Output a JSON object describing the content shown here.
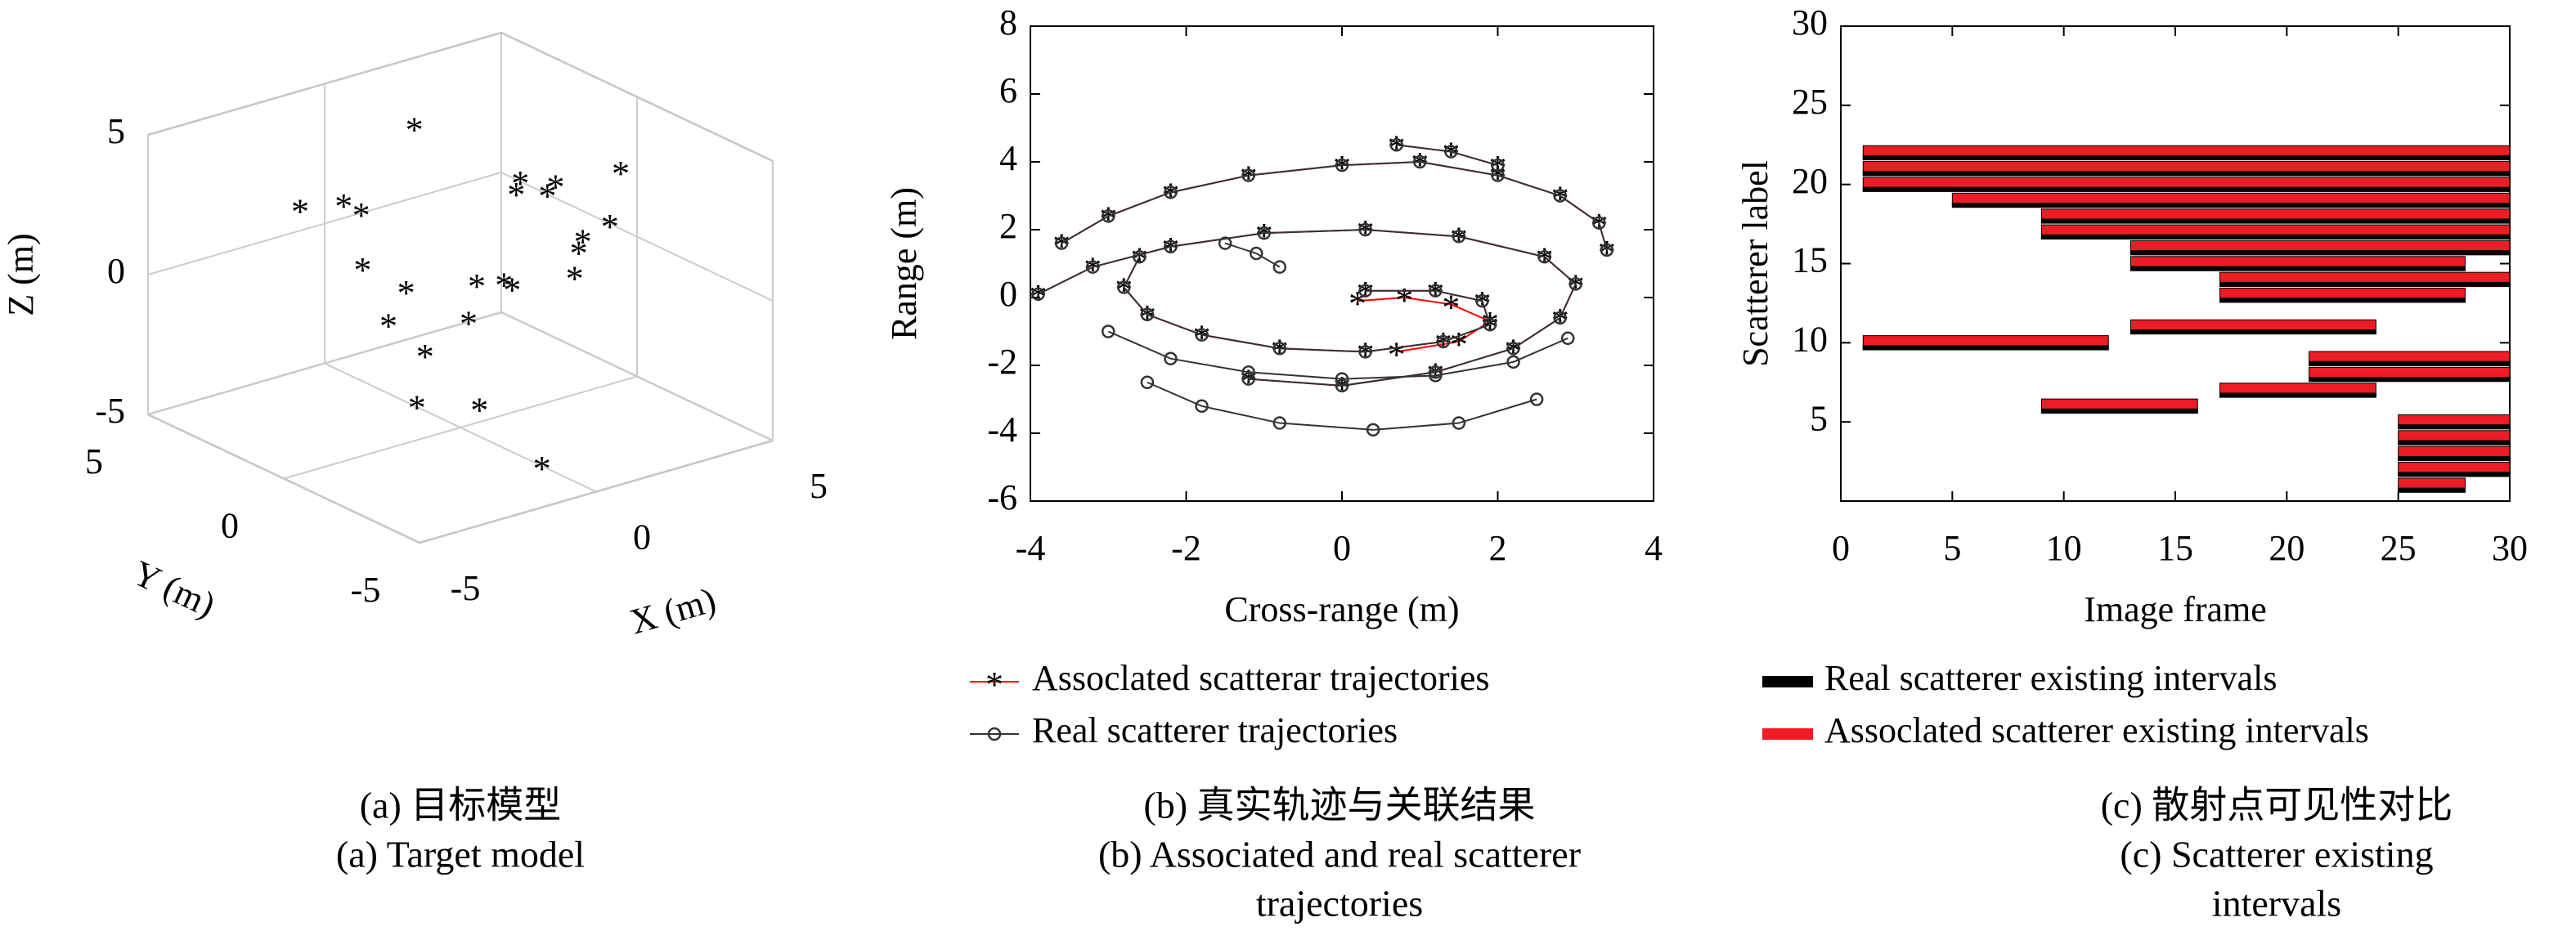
{
  "chart_data": [
    {
      "type": "scatter3d",
      "caption": [
        "(a) 目标模型",
        "(a) Target model"
      ],
      "xlabel": "X (m)",
      "ylabel": "Y (m)",
      "zlabel": "Z (m)",
      "xlim": [
        -5,
        5
      ],
      "ylim": [
        -5,
        5
      ],
      "zlim": [
        -5,
        5
      ],
      "xticks": [
        -5,
        0,
        5
      ],
      "yticks": [
        -5,
        0,
        5
      ],
      "zticks": [
        -5,
        0,
        5
      ],
      "grid": true,
      "color": "#000000",
      "x": [
        -3,
        -2,
        -1,
        -0.5,
        0,
        1,
        -1,
        2,
        3,
        4,
        4,
        5,
        5,
        5,
        4,
        3,
        1,
        -2,
        -1,
        0,
        -0.5,
        2,
        3.5,
        4.5
      ],
      "y": [
        2,
        1,
        3,
        3,
        2,
        1,
        0,
        1,
        2,
        3,
        2,
        3,
        2,
        1,
        1,
        -2,
        3,
        -1,
        -2,
        -3,
        2,
        2,
        2.5,
        1.5
      ],
      "z": [
        3,
        1,
        2,
        1.5,
        -1,
        -2,
        -2,
        -1,
        -2,
        1,
        1,
        0.5,
        -1,
        0,
        -1.5,
        4,
        4,
        -3,
        -3,
        -5,
        -2,
        -1.5,
        1,
        -1
      ]
    },
    {
      "type": "line",
      "caption": [
        "(b) 真实轨迹与关联结果",
        "(b) Associated and real scatterer",
        "trajectories"
      ],
      "xlabel": "Cross-range (m)",
      "ylabel": "Range (m)",
      "xlim": [
        -4,
        4
      ],
      "ylim": [
        -6,
        8
      ],
      "xticks": [
        -4,
        -2,
        0,
        2,
        4
      ],
      "yticks": [
        -6,
        -4,
        -2,
        0,
        2,
        4,
        6,
        8
      ],
      "legend": "bottom",
      "series": [
        {
          "name": "Assoclated scatterar trajectories",
          "color": "#ff0000",
          "marker": "star",
          "x": [
            -3.6,
            -3.0,
            -2.2,
            -1.2,
            0,
            1.0,
            2.0,
            2.8,
            3.3,
            3.4,
            null,
            -3.9,
            -3.2,
            -2.2,
            -1,
            0.3,
            1.5,
            2.6,
            3.0,
            2.8,
            2.2,
            1.2,
            0,
            -1.2,
            null,
            -2.6,
            -2.8,
            -2.5,
            -1.8,
            -0.8,
            0.3,
            1.3,
            1.9,
            1.8,
            1.2,
            0.3,
            null,
            0.7,
            1.4,
            2,
            null,
            0.2,
            0.8,
            1.4,
            1.9,
            1.5,
            0.7
          ],
          "y": [
            1.6,
            2.4,
            3.1,
            3.6,
            3.9,
            4.0,
            3.6,
            3.0,
            2.2,
            1.4,
            null,
            0.1,
            0.9,
            1.5,
            1.9,
            2.0,
            1.8,
            1.2,
            0.4,
            -0.6,
            -1.5,
            -2.2,
            -2.6,
            -2.4,
            null,
            1.2,
            0.3,
            -0.5,
            -1.1,
            -1.5,
            -1.6,
            -1.3,
            -0.8,
            -0.1,
            0.2,
            0.2,
            null,
            4.5,
            4.3,
            3.9,
            null,
            -0.1,
            0,
            -0.2,
            -0.7,
            -1.3,
            -1.6
          ]
        },
        {
          "name": "Real scatterer trajectories",
          "color": "#333333",
          "marker": "circle",
          "x": [
            -3.6,
            -3.0,
            -2.2,
            -1.2,
            0,
            1.0,
            2.0,
            2.8,
            3.3,
            3.4,
            null,
            -3.9,
            -3.2,
            -2.2,
            -1,
            0.3,
            1.5,
            2.6,
            3.0,
            2.8,
            2.2,
            1.2,
            0,
            -1.2,
            null,
            -2.5,
            -1.8,
            -0.8,
            0.4,
            1.5,
            2.5,
            null,
            -2.6,
            -2.8,
            -2.5,
            -1.8,
            -0.8,
            0.3,
            1.3,
            1.9,
            1.8,
            1.2,
            0.3,
            null,
            -3.0,
            -2.2,
            -1.2,
            0,
            1.2,
            2.2,
            2.9,
            null,
            -1.5,
            -1.1,
            -0.8,
            null,
            0.7,
            1.4,
            2
          ],
          "y": [
            1.6,
            2.4,
            3.1,
            3.6,
            3.9,
            4.0,
            3.6,
            3.0,
            2.2,
            1.4,
            null,
            0.1,
            0.9,
            1.5,
            1.9,
            2.0,
            1.8,
            1.2,
            0.4,
            -0.6,
            -1.5,
            -2.2,
            -2.6,
            -2.4,
            null,
            -2.5,
            -3.2,
            -3.7,
            -3.9,
            -3.7,
            -3.0,
            null,
            1.2,
            0.3,
            -0.5,
            -1.1,
            -1.5,
            -1.6,
            -1.3,
            -0.8,
            -0.1,
            0.2,
            0.2,
            null,
            -1.0,
            -1.8,
            -2.2,
            -2.4,
            -2.3,
            -1.9,
            -1.2,
            null,
            1.6,
            1.3,
            0.9,
            null,
            4.5,
            4.3,
            3.9
          ]
        }
      ]
    },
    {
      "type": "interval",
      "caption": [
        "(c) 散射点可见性对比",
        "(c) Scatterer existing",
        "intervals"
      ],
      "xlabel": "Image frame",
      "ylabel": "Scatterer label",
      "xlim": [
        0,
        30
      ],
      "ylim": [
        0,
        30
      ],
      "xticks": [
        0,
        5,
        10,
        15,
        20,
        25,
        30
      ],
      "yticks": [
        5,
        10,
        15,
        20,
        25,
        30
      ],
      "legend": "bottom",
      "series": [
        {
          "name": "Real scatterer existing intervals",
          "color": "#000000",
          "y": [
            22,
            21,
            20,
            19,
            18,
            17,
            16,
            15,
            14,
            13,
            11,
            10,
            9,
            8,
            7,
            6,
            5,
            4,
            3,
            2,
            1
          ],
          "start": [
            1,
            1,
            1,
            5,
            9,
            9,
            13,
            13,
            17,
            17,
            13,
            1,
            21,
            21,
            17,
            9,
            25,
            25,
            25,
            25,
            25
          ],
          "end": [
            30,
            30,
            30,
            30,
            30,
            30,
            30,
            28,
            30,
            28,
            24,
            12,
            30,
            30,
            24,
            16,
            30,
            30,
            30,
            30,
            28
          ]
        },
        {
          "name": "Assoclated scatterer existing intervals",
          "color": "#ee1c25",
          "y": [
            22,
            21,
            20,
            19,
            18,
            17,
            16,
            15,
            14,
            13,
            11,
            10,
            9,
            8,
            7,
            6,
            5,
            4,
            3,
            2,
            1
          ],
          "start": [
            1,
            1,
            1,
            5,
            9,
            9,
            13,
            13,
            17,
            17,
            13,
            1,
            21,
            21,
            17,
            9,
            25,
            25,
            25,
            25,
            25
          ],
          "end": [
            30,
            30,
            30,
            30,
            30,
            30,
            30,
            28,
            30,
            28,
            24,
            12,
            30,
            30,
            24,
            16,
            30,
            30,
            30,
            30,
            28
          ]
        }
      ]
    }
  ]
}
